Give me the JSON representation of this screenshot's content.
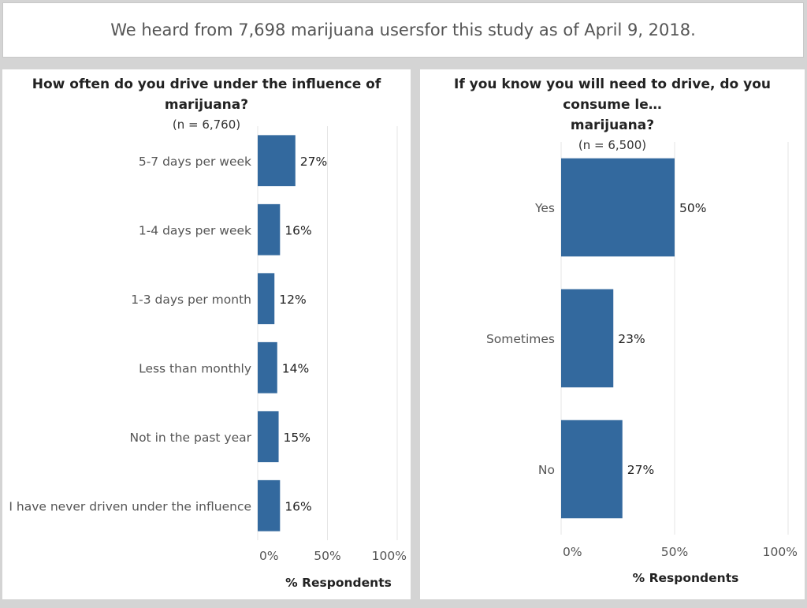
{
  "banner": {
    "text": "We heard from 7,698 marijuana usersfor this study as of April 9, 2018."
  },
  "colors": {
    "bar": "#33699e",
    "gridline": "#e4e4e4",
    "background": "#d4d4d4"
  },
  "chart_data": [
    {
      "type": "bar",
      "orientation": "horizontal",
      "title": "How often do you drive under the influence of marijuana?",
      "subtitle": "(n = 6,760)",
      "categories": [
        "5-7 days per week",
        "1-4 days per week",
        "1-3 days per month",
        "Less than monthly",
        "Not in the past year",
        "I have never driven under the influence"
      ],
      "values": [
        27,
        16,
        12,
        14,
        15,
        16
      ],
      "value_labels": [
        "27%",
        "16%",
        "12%",
        "14%",
        "15%",
        "16%"
      ],
      "xlabel": "% Respondents",
      "xticks": [
        "0%",
        "50%",
        "100%"
      ],
      "xlim": [
        0,
        100
      ],
      "grid": true
    },
    {
      "type": "bar",
      "orientation": "horizontal",
      "title": "If you know you will need to drive, do you consume le… marijuana?",
      "title_line1": "If you know you will need to drive, do you consume le…",
      "title_line2": "marijuana?",
      "subtitle": "(n = 6,500)",
      "categories": [
        "Yes",
        "Sometimes",
        "No"
      ],
      "values": [
        50,
        23,
        27
      ],
      "value_labels": [
        "50%",
        "23%",
        "27%"
      ],
      "xlabel": "% Respondents",
      "xticks": [
        "0%",
        "50%",
        "100%"
      ],
      "xlim": [
        0,
        100
      ],
      "grid": true
    }
  ]
}
